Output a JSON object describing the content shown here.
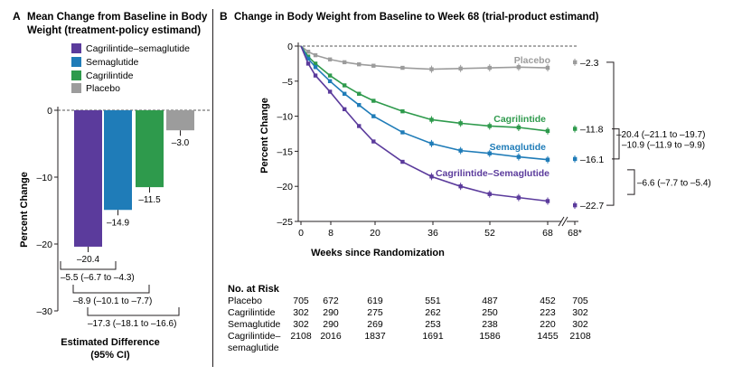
{
  "panel_a": {
    "letter": "A",
    "title_lines": [
      "Mean Change from Baseline in Body",
      "Weight (treatment-policy estimand)"
    ],
    "ylabel": "Percent Change",
    "yticks": [
      0,
      -10,
      -20,
      -30
    ],
    "ylim": [
      -30,
      0
    ],
    "legend": [
      {
        "label": "Cagrilintide–semaglutide",
        "color": "#5b3b9c"
      },
      {
        "label": "Semaglutide",
        "color": "#1f7cb8"
      },
      {
        "label": "Cagrilintide",
        "color": "#2e9a4c"
      },
      {
        "label": "Placebo",
        "color": "#9c9c9c"
      }
    ],
    "diff_lines": [
      "–5.5 (–6.7 to –4.3)",
      "–8.9 (–10.1 to –7.7)",
      "–17.3 (–18.1 to –16.6)"
    ],
    "footer_lines": [
      "Estimated Difference",
      "(95% CI)"
    ]
  },
  "panel_b": {
    "letter": "B",
    "title": "Change in Body Weight from Baseline to Week 68 (trial-product estimand)",
    "ylabel": "Percent Change",
    "xlabel": "Weeks since Randomization",
    "yticks": [
      0,
      -5,
      -10,
      -15,
      -20,
      -25
    ],
    "xticks": [
      "0",
      "8",
      "20",
      "36",
      "52",
      "68",
      "68*"
    ],
    "end_labels": [
      "–2.3",
      "–11.8",
      "–16.1",
      "–22.7"
    ],
    "diff_lines": [
      "–20.4 (–21.1 to –19.7)",
      "–10.9 (–11.9 to –9.9)",
      "–6.6 (–7.7 to –5.4)"
    ]
  },
  "chart_data": [
    {
      "type": "bar",
      "title": "Mean Change from Baseline in Body Weight (treatment-policy estimand)",
      "ylabel": "Percent Change",
      "ylim": [
        -30,
        0
      ],
      "categories": [
        "Cagrilintide–semaglutide",
        "Semaglutide",
        "Cagrilintide",
        "Placebo"
      ],
      "values": [
        -20.4,
        -14.9,
        -11.5,
        -3.0
      ],
      "value_labels": [
        "–20.4",
        "–14.9",
        "–11.5",
        "–3.0"
      ],
      "colors": [
        "#5b3b9c",
        "#1f7cb8",
        "#2e9a4c",
        "#9c9c9c"
      ],
      "legend": "top-left",
      "grid": false
    },
    {
      "type": "line",
      "title": "Change in Body Weight from Baseline to Week 68 (trial-product estimand)",
      "xlabel": "Weeks since Randomization",
      "ylabel": "Percent Change",
      "ylim": [
        -25,
        0
      ],
      "xlim": [
        0,
        68
      ],
      "grid": false,
      "x": [
        0,
        2,
        4,
        8,
        12,
        16,
        20,
        28,
        36,
        44,
        52,
        60,
        68
      ],
      "series": [
        {
          "name": "Placebo",
          "color": "#9c9c9c",
          "values": [
            0,
            -0.8,
            -1.3,
            -1.9,
            -2.3,
            -2.6,
            -2.8,
            -3.1,
            -3.3,
            -3.2,
            -3.1,
            -3.0,
            -3.1
          ],
          "end_value": -2.3
        },
        {
          "name": "Cagrilintide",
          "color": "#2e9a4c",
          "values": [
            0,
            -1.5,
            -2.5,
            -4.2,
            -5.6,
            -6.8,
            -7.8,
            -9.3,
            -10.5,
            -11.0,
            -11.4,
            -11.6,
            -12.1
          ],
          "end_value": -11.8
        },
        {
          "name": "Semaglutide",
          "color": "#1f7cb8",
          "values": [
            0,
            -1.8,
            -3.0,
            -5.0,
            -6.8,
            -8.4,
            -10.0,
            -12.3,
            -13.9,
            -14.9,
            -15.3,
            -15.8,
            -16.2
          ],
          "end_value": -16.1
        },
        {
          "name": "Cagrilintide–Semaglutide",
          "color": "#5b3b9c",
          "values": [
            0,
            -2.5,
            -4.2,
            -6.5,
            -9.0,
            -11.4,
            -13.6,
            -16.5,
            -18.6,
            -20.0,
            -21.1,
            -21.6,
            -22.1
          ],
          "end_value": -22.7
        }
      ]
    }
  ],
  "risk_table": {
    "heading": "No. at Risk",
    "rows": [
      {
        "label": [
          "Placebo"
        ],
        "values": [
          "705",
          "672",
          "619",
          "551",
          "487",
          "452",
          "705"
        ]
      },
      {
        "label": [
          "Cagrilintide"
        ],
        "values": [
          "302",
          "290",
          "275",
          "262",
          "250",
          "223",
          "302"
        ]
      },
      {
        "label": [
          "Semaglutide"
        ],
        "values": [
          "302",
          "290",
          "269",
          "253",
          "238",
          "220",
          "302"
        ]
      },
      {
        "label": [
          "Cagrilintide–",
          "semaglutide"
        ],
        "values": [
          "2108",
          "2016",
          "1837",
          "1691",
          "1586",
          "1455",
          "2108"
        ]
      }
    ]
  }
}
